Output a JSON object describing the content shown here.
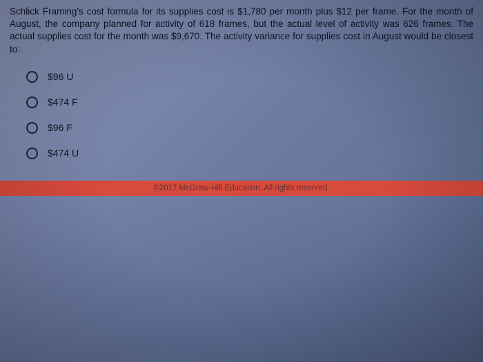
{
  "question": {
    "text": "Schlick Framing's cost formula for its supplies cost is $1,780 per month plus $12 per frame. For the month of August, the company planned for activity of 618 frames, but the actual level of activity was 626 frames. The actual supplies cost for the month was $9,670. The activity variance for supplies cost in August would be closest to:"
  },
  "options": [
    {
      "label": "$96 U"
    },
    {
      "label": "$474 F"
    },
    {
      "label": "$96 F"
    },
    {
      "label": "$474 U"
    }
  ],
  "copyright": "©2017 McGraw-Hill Education. All rights reserved.",
  "colors": {
    "background_top": "#8a95b8",
    "background_bottom": "#5a6a8f",
    "bar": "#d84a3c",
    "text": "#0a1525"
  }
}
